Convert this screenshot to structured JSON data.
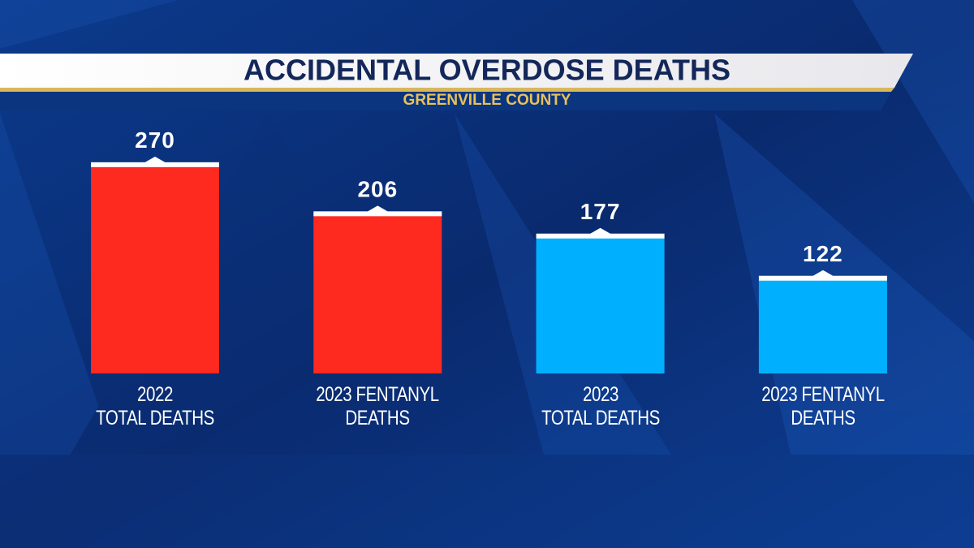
{
  "chart_data": {
    "type": "bar",
    "title": "ACCIDENTAL OVERDOSE DEATHS",
    "subtitle": "GREENVILLE COUNTY",
    "categories": [
      "2022\nTOTAL DEATHS",
      "2023 FENTANYL\nDEATHS",
      "2023\nTOTAL DEATHS",
      "2023 FENTANYL\nDEATHS"
    ],
    "values": [
      270,
      206,
      177,
      122
    ],
    "colors": [
      "#ff2a1f",
      "#ff2a1f",
      "#00b0ff",
      "#00b0ff"
    ]
  }
}
